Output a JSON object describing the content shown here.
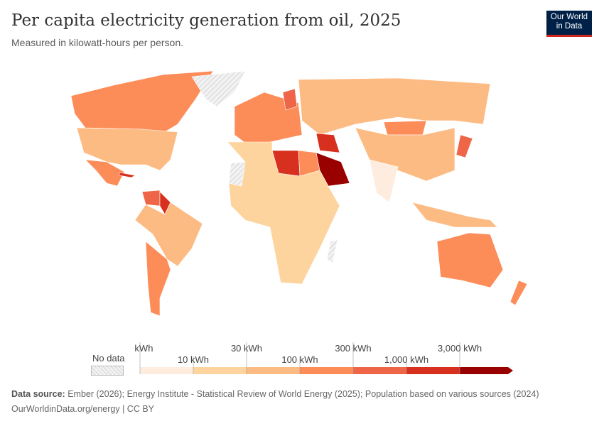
{
  "header": {
    "title": "Per capita electricity generation from oil, 2025",
    "subtitle": "Measured in kilowatt-hours per person.",
    "logo": "Our World in Data"
  },
  "legend": {
    "no_data_label": "No data",
    "bins_labels_top": [
      "0 kWh",
      "30 kWh",
      "300 kWh",
      "3,000 kWh"
    ],
    "bins_labels_bottom": [
      "10 kWh",
      "100 kWh",
      "1,000 kWh"
    ],
    "thresholds": [
      0,
      10,
      30,
      100,
      300,
      1000,
      3000
    ],
    "colors": [
      "#feedde",
      "#fdd49e",
      "#fdbb84",
      "#fc8d59",
      "#ef6548",
      "#d7301f",
      "#990000"
    ],
    "no_data_color": "#e6e6e6"
  },
  "map_data": {
    "unit": "kWh per person",
    "regions": [
      {
        "name": "Canada",
        "bin": 3
      },
      {
        "name": "United States",
        "bin": 2
      },
      {
        "name": "Mexico",
        "bin": 3
      },
      {
        "name": "Greenland",
        "bin": -1
      },
      {
        "name": "Cuba",
        "bin": 5
      },
      {
        "name": "Venezuela",
        "bin": 4
      },
      {
        "name": "Guyana",
        "bin": 5
      },
      {
        "name": "Brazil",
        "bin": 2
      },
      {
        "name": "Argentina",
        "bin": 3
      },
      {
        "name": "Europe",
        "bin": 3
      },
      {
        "name": "Finland",
        "bin": 4
      },
      {
        "name": "Russia",
        "bin": 2
      },
      {
        "name": "Mongolia",
        "bin": 3
      },
      {
        "name": "China",
        "bin": 2
      },
      {
        "name": "Japan",
        "bin": 4
      },
      {
        "name": "Saudi Arabia",
        "bin": 6
      },
      {
        "name": "Libya",
        "bin": 5
      },
      {
        "name": "Iraq",
        "bin": 5
      },
      {
        "name": "Egypt",
        "bin": 3
      },
      {
        "name": "India",
        "bin": 0
      },
      {
        "name": "Africa (rest)",
        "bin": 1
      },
      {
        "name": "Western Sahara",
        "bin": -1
      },
      {
        "name": "Indonesia",
        "bin": 2
      },
      {
        "name": "Australia",
        "bin": 3
      },
      {
        "name": "New Zealand",
        "bin": 3
      },
      {
        "name": "Madagascar",
        "bin": -1
      }
    ]
  },
  "footer": {
    "source_label": "Data source:",
    "source_text": "Ember (2026); Energy Institute - Statistical Review of World Energy (2025); Population based on various sources (2024)",
    "url": "OurWorldinData.org/energy | CC BY"
  }
}
